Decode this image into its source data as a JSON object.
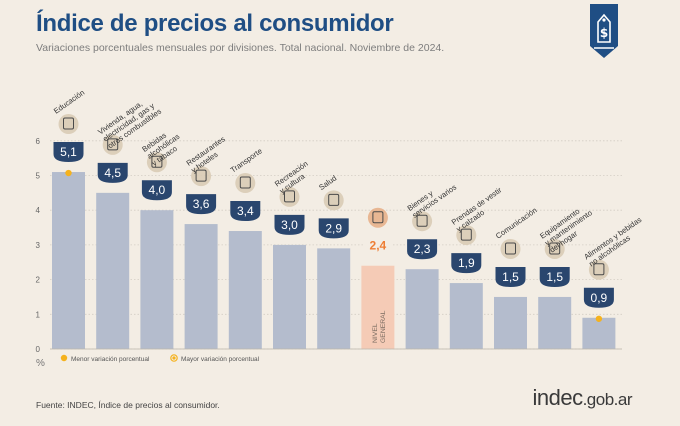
{
  "header": {
    "title": "Índice de precios al consumidor",
    "subtitle": "Variaciones porcentuales mensuales por divisiones. Total nacional. Noviembre de 2024."
  },
  "legend": {
    "min_label": "Menor variación porcentual",
    "max_label": "Mayor variación porcentual"
  },
  "footer": {
    "source": "Fuente: INDEC, Índice de precios al consumidor.",
    "brand_main": "indec",
    "brand_suffix": ".gob.ar"
  },
  "colors": {
    "bar": "#b4bccd",
    "bar_general": "#f5cbb6",
    "badge": "#2a466e",
    "badge_general_text": "#ee7e35",
    "title": "#1f4e84",
    "marker": "#f5b21e"
  },
  "chart_data": {
    "type": "bar",
    "title": "Índice de precios al consumidor",
    "ylabel": "%",
    "ylim": [
      0,
      6
    ],
    "yticks": [
      0,
      1,
      2,
      3,
      4,
      5,
      6
    ],
    "grid": true,
    "categories": [
      "Educación",
      "Vivienda, agua, electricidad, gas y otros combustibles",
      "Bebidas alcohólicas y tabaco",
      "Restaurantes y hoteles",
      "Transporte",
      "Recreación y cultura",
      "Salud",
      "Nivel general",
      "Bienes y servicios varios",
      "Prendas de vestir y calzado",
      "Comunicación",
      "Equipamiento y mantenimiento del hogar",
      "Alimentos y bebidas no alcohólicas"
    ],
    "category_lines": [
      [
        "Educación"
      ],
      [
        "Vivienda, agua,",
        "electricidad, gas y",
        "otros combustibles"
      ],
      [
        "Bebidas",
        "alcohólicas",
        "y tabaco"
      ],
      [
        "Restaurantes",
        "y hoteles"
      ],
      [
        "Transporte"
      ],
      [
        "Recreación",
        "y cultura"
      ],
      [
        "Salud"
      ],
      [],
      [
        "Bienes y",
        "servicios varios"
      ],
      [
        "Prendas de vestir",
        "y calzado"
      ],
      [
        "Comunicación"
      ],
      [
        "Equipamiento",
        "y mantenimiento",
        "del hogar"
      ],
      [
        "Alimentos y bebidas",
        "no alcohólicas"
      ]
    ],
    "values": [
      5.1,
      4.5,
      4.0,
      3.6,
      3.4,
      3.0,
      2.9,
      2.4,
      2.3,
      1.9,
      1.5,
      1.5,
      0.9
    ],
    "value_labels": [
      "5,1",
      "4,5",
      "4,0",
      "3,6",
      "3,4",
      "3,0",
      "2,9",
      "2,4",
      "2,3",
      "1,9",
      "1,5",
      "1,5",
      "0,9"
    ],
    "general_index": 7,
    "general_bar_text": [
      "NIVEL",
      "GENERAL"
    ],
    "max_index": 0,
    "min_index": 12,
    "icons": [
      "books-icon",
      "lightbulb-icon",
      "bottle-icon",
      "plate-icon",
      "bus-icon",
      "umbrella-icon",
      "medical-cross-icon",
      "basket-icon",
      "toiletries-icon",
      "clothing-icon",
      "phone-icon",
      "pot-icon",
      "food-icon"
    ]
  }
}
